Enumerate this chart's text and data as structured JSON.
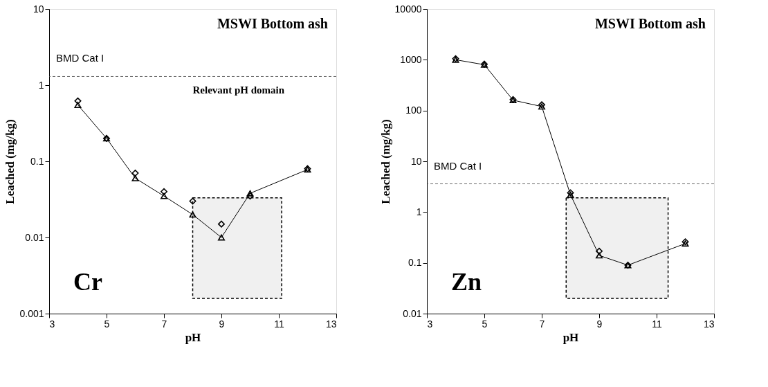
{
  "chart_data": [
    {
      "type": "line",
      "xlabel": "pH",
      "ylabel": "Leached (mg/kg)",
      "annotations": [
        "MSWI Bottom ash",
        "Cr"
      ],
      "x": [
        4,
        5,
        6,
        7,
        8,
        9,
        10,
        12
      ],
      "series": [
        {
          "marker": "triangle",
          "color": "#000000",
          "values": [
            0.55,
            0.2,
            0.06,
            0.035,
            0.02,
            0.01,
            0.038,
            0.078
          ]
        },
        {
          "type": "scatter",
          "marker": "diamond",
          "color": "#000000",
          "values": [
            0.62,
            0.2,
            0.07,
            0.04,
            0.03,
            0.015,
            0.035,
            0.08
          ]
        }
      ],
      "log": "y",
      "xlim": [
        3,
        13
      ],
      "xticks": [
        3,
        5,
        7,
        9,
        11,
        13
      ],
      "ylim": [
        0.001,
        10
      ],
      "yticks": [
        0.001,
        0.01,
        0.1,
        1,
        10
      ],
      "ref_lines": [
        {
          "axis": "y",
          "value": 1.3,
          "label": "BMD Cat I",
          "line_style": "dashed"
        }
      ],
      "bands": [
        {
          "axis": "x",
          "from": 8,
          "to": 11.1,
          "label": "Relevant pH domain",
          "color": "#000000"
        }
      ],
      "grid": false,
      "legend": false
    },
    {
      "type": "line",
      "xlabel": "pH",
      "ylabel": "Leached (mg/kg)",
      "annotations": [
        "MSWI Bottom ash",
        "Zn"
      ],
      "x": [
        4,
        5,
        6,
        7,
        8,
        9,
        10,
        12
      ],
      "series": [
        {
          "marker": "triangle",
          "color": "#000000",
          "values": [
            1000,
            800,
            160,
            120,
            2.2,
            0.14,
            0.09,
            0.24
          ]
        },
        {
          "type": "scatter",
          "marker": "diamond",
          "color": "#000000",
          "values": [
            1050,
            820,
            165,
            130,
            2.4,
            0.17,
            0.09,
            0.26
          ]
        }
      ],
      "log": "y",
      "xlim": [
        3,
        13
      ],
      "xticks": [
        3,
        5,
        7,
        9,
        11,
        13
      ],
      "ylim": [
        0.01,
        10000
      ],
      "yticks": [
        0.01,
        0.1,
        1,
        10,
        100,
        1000,
        10000
      ],
      "ref_lines": [
        {
          "axis": "y",
          "value": 3.6,
          "label": "BMD Cat I",
          "line_style": "dashed"
        }
      ],
      "bands": [
        {
          "axis": "x",
          "from": 7.85,
          "to": 11.4,
          "color": "#000000"
        }
      ],
      "grid": false,
      "legend": false
    }
  ]
}
